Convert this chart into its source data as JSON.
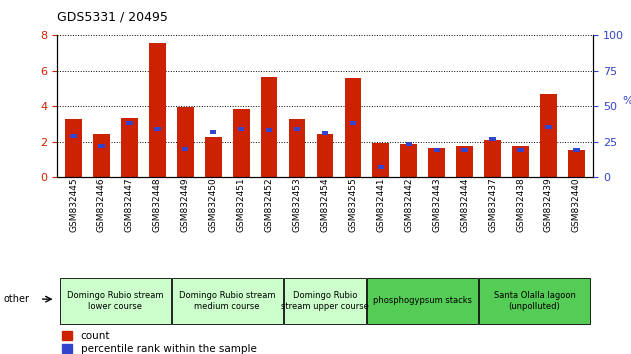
{
  "title": "GDS5331 / 20495",
  "samples": [
    "GSM832445",
    "GSM832446",
    "GSM832447",
    "GSM832448",
    "GSM832449",
    "GSM832450",
    "GSM832451",
    "GSM832452",
    "GSM832453",
    "GSM832454",
    "GSM832455",
    "GSM832441",
    "GSM832442",
    "GSM832443",
    "GSM832444",
    "GSM832437",
    "GSM832438",
    "GSM832439",
    "GSM832440"
  ],
  "counts": [
    3.25,
    2.45,
    3.35,
    7.55,
    3.95,
    2.25,
    3.85,
    5.65,
    3.25,
    2.45,
    5.6,
    1.9,
    1.85,
    1.65,
    1.75,
    2.1,
    1.75,
    4.7,
    1.55
  ],
  "pct_positions": [
    2.32,
    1.76,
    3.04,
    2.72,
    1.6,
    2.56,
    2.72,
    2.64,
    2.72,
    2.48,
    3.04,
    0.56,
    1.84,
    1.52,
    1.52,
    2.16,
    1.52,
    2.8,
    1.52
  ],
  "bar_color": "#CC2200",
  "percentile_color": "#3344CC",
  "groups": [
    {
      "label": "Domingo Rubio stream\nlower course",
      "start": 0,
      "end": 4,
      "color": "#ccffcc"
    },
    {
      "label": "Domingo Rubio stream\nmedium course",
      "start": 4,
      "end": 8,
      "color": "#ccffcc"
    },
    {
      "label": "Domingo Rubio\nstream upper course",
      "start": 8,
      "end": 11,
      "color": "#ccffcc"
    },
    {
      "label": "phosphogypsum stacks",
      "start": 11,
      "end": 15,
      "color": "#55cc55"
    },
    {
      "label": "Santa Olalla lagoon\n(unpolluted)",
      "start": 15,
      "end": 19,
      "color": "#55cc55"
    }
  ],
  "ylim_left": [
    0,
    8
  ],
  "ylim_right": [
    0,
    100
  ],
  "yticks_left": [
    0,
    2,
    4,
    6,
    8
  ],
  "yticks_right": [
    0,
    25,
    50,
    75,
    100
  ],
  "ylabel_left_color": "#CC2200",
  "ylabel_right_color": "#3344CC",
  "bar_width": 0.6,
  "other_label": "other",
  "legend_count_label": "count",
  "legend_pct_label": "percentile rank within the sample"
}
